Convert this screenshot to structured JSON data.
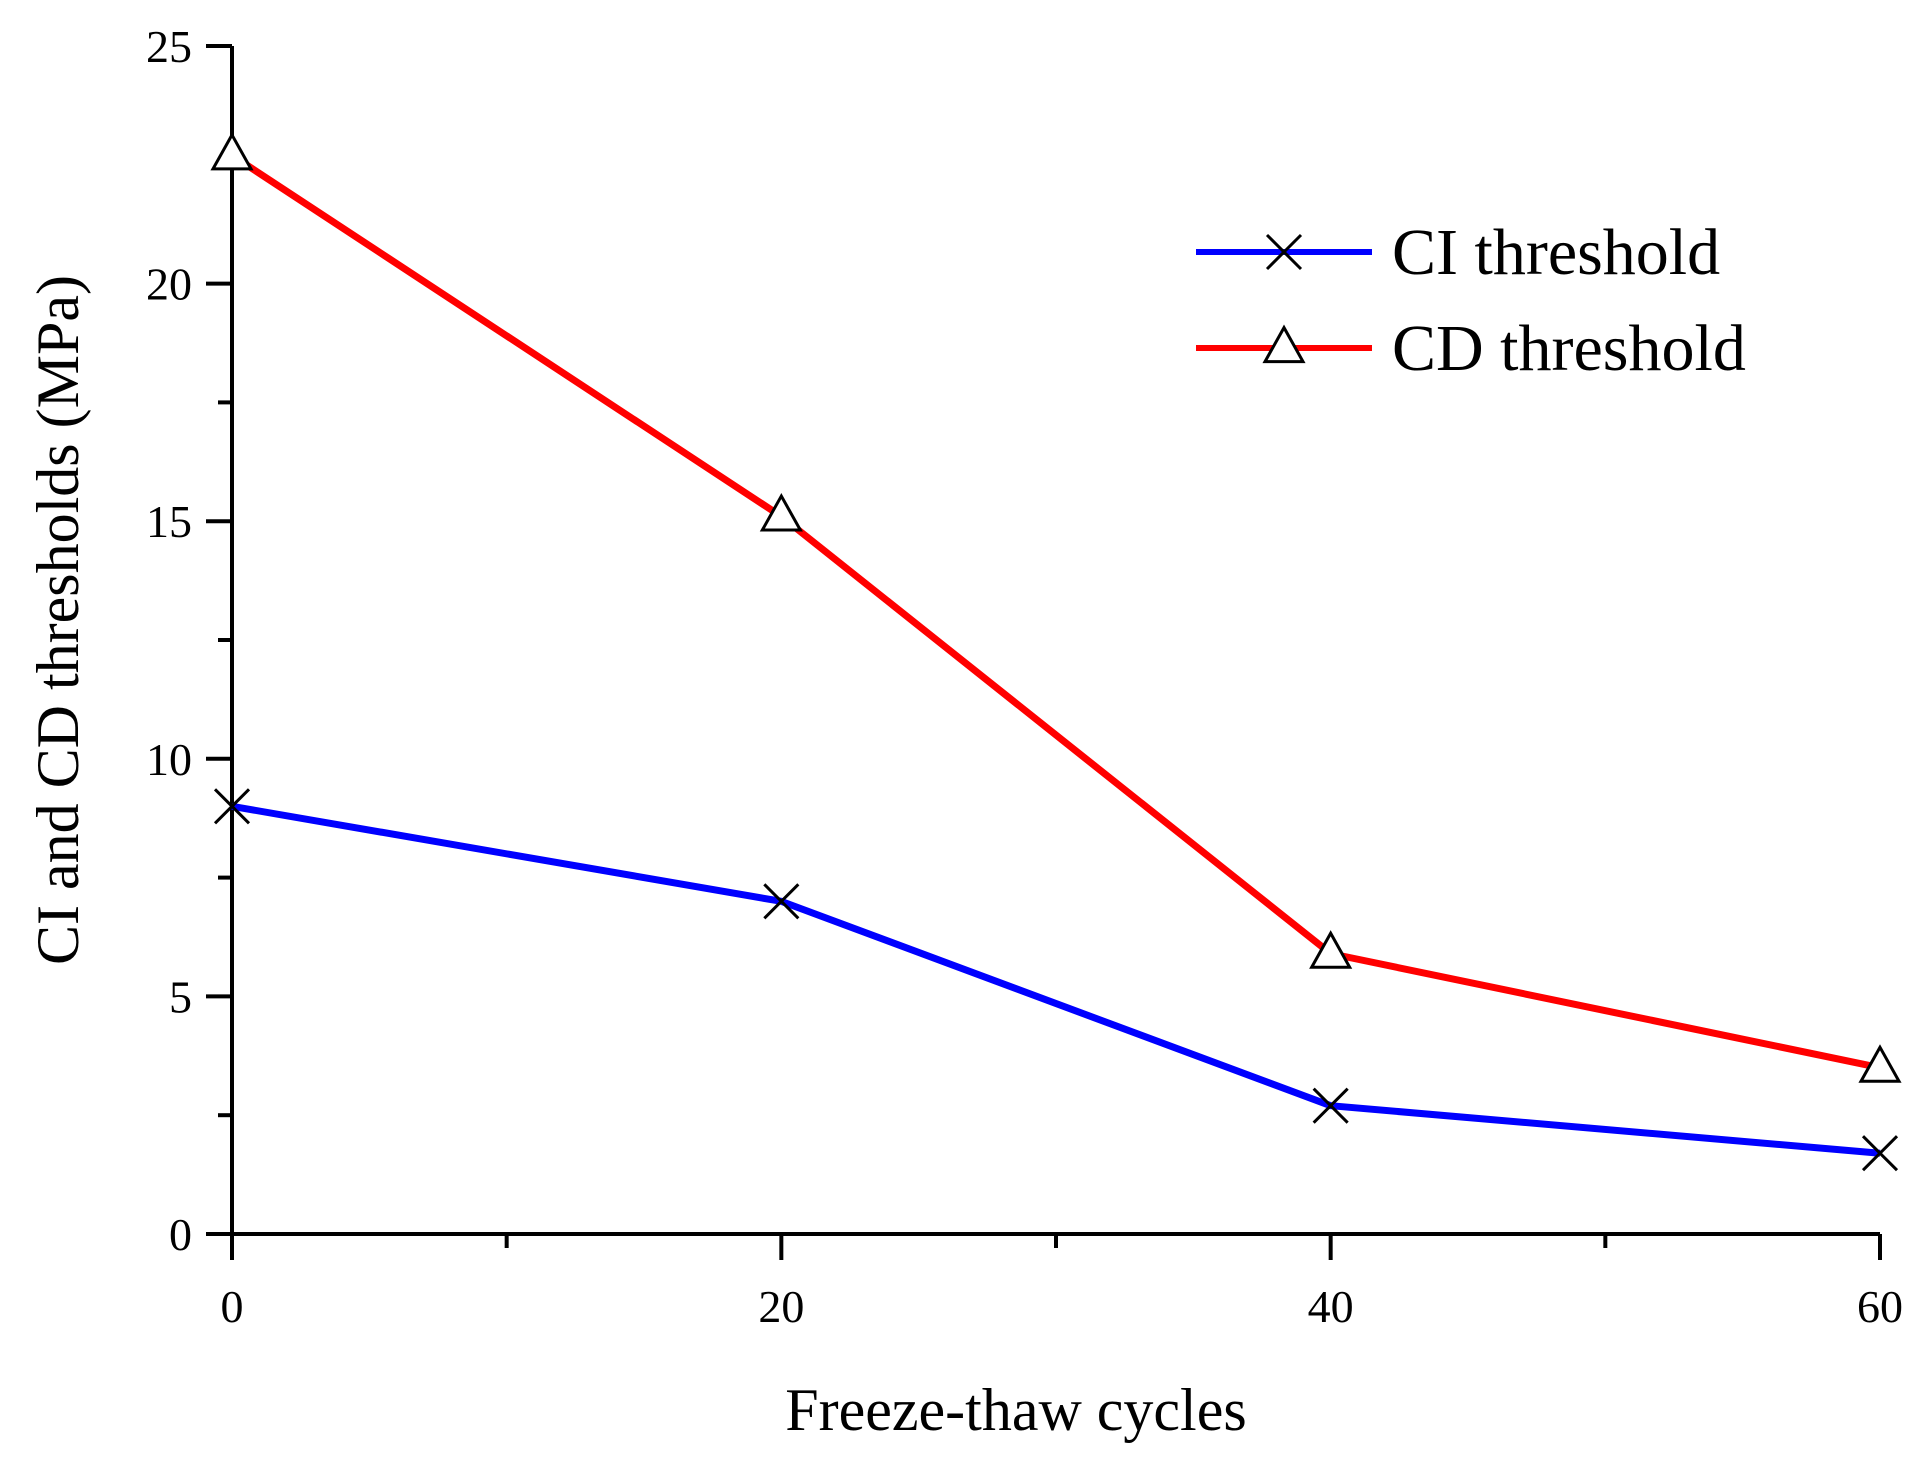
{
  "chart_data": {
    "type": "line",
    "title": "",
    "xlabel": "Freeze-thaw cycles",
    "ylabel": "CI and CD thresholds (MPa)",
    "x": [
      0,
      20,
      40,
      60
    ],
    "xlim": [
      0,
      60
    ],
    "ylim": [
      0,
      25
    ],
    "x_ticks": [
      0,
      20,
      40,
      60
    ],
    "x_tick_labels": [
      "0",
      "20",
      "40",
      "60"
    ],
    "y_ticks": [
      0,
      5,
      10,
      15,
      20,
      25
    ],
    "y_tick_labels": [
      "0",
      "5",
      "10",
      "15",
      "20",
      "25"
    ],
    "grid": false,
    "legend_position": "top-right",
    "series": [
      {
        "name": "CI threshold",
        "values": [
          9.0,
          7.0,
          2.7,
          1.7
        ],
        "color": "#0000ff",
        "marker": "x"
      },
      {
        "name": "CD threshold",
        "values": [
          22.7,
          15.1,
          5.9,
          3.5
        ],
        "color": "#ff0000",
        "marker": "triangle"
      }
    ]
  }
}
